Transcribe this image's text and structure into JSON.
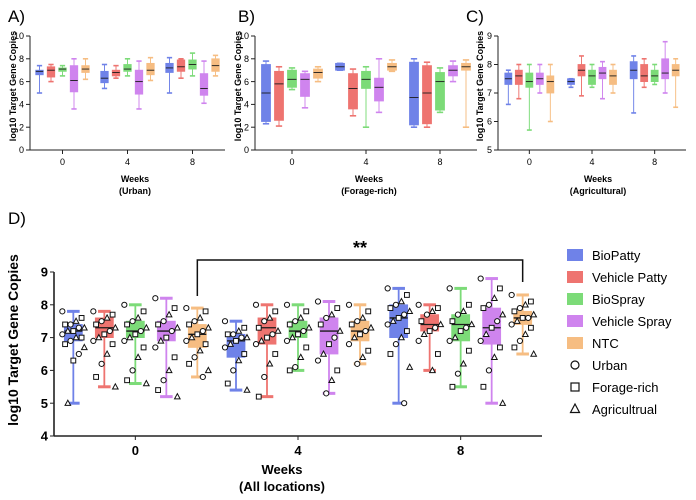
{
  "colors": {
    "BioPatty": "#6f82e8",
    "Vehicle Patty": "#ee7470",
    "BioSpray": "#7cdb78",
    "Vehicle Spray": "#cf84ee",
    "NTC": "#f6bd82"
  },
  "chart_data": [
    {
      "panel": "A)",
      "type": "box",
      "subtitle": "(Urban)",
      "xlabel": "Weeks",
      "ylabel": "log10 Target Gene Copies",
      "ylim": [
        0,
        10
      ],
      "yticks": [
        "0",
        "2",
        "4",
        "6",
        "8",
        "10"
      ],
      "categories": [
        "0",
        "4",
        "8"
      ],
      "series": [
        {
          "name": "BioPatty",
          "boxes": [
            [
              5.0,
              6.6,
              6.9,
              7.0,
              7.4
            ],
            [
              5.4,
              5.9,
              6.3,
              6.9,
              7.5
            ],
            [
              5.0,
              6.8,
              7.2,
              7.6,
              8.1
            ]
          ]
        },
        {
          "name": "Vehicle Patty",
          "boxes": [
            [
              6.0,
              6.4,
              7.0,
              7.3,
              7.5
            ],
            [
              6.3,
              6.5,
              6.8,
              7.0,
              7.4
            ],
            [
              6.3,
              6.9,
              7.3,
              7.9,
              8.0
            ]
          ]
        },
        {
          "name": "BioSpray",
          "boxes": [
            [
              6.5,
              6.9,
              7.1,
              7.2,
              7.4
            ],
            [
              6.5,
              6.9,
              7.1,
              7.5,
              8.0
            ],
            [
              6.5,
              7.1,
              7.5,
              7.9,
              8.5
            ]
          ]
        },
        {
          "name": "Vehicle Spray",
          "boxes": [
            [
              3.6,
              5.1,
              6.1,
              7.4,
              8.0
            ],
            [
              3.6,
              4.9,
              6.0,
              7.0,
              7.8
            ],
            [
              4.1,
              4.8,
              5.4,
              6.7,
              7.8
            ]
          ]
        },
        {
          "name": "NTC",
          "boxes": [
            [
              6.2,
              6.8,
              7.1,
              7.4,
              8.0
            ],
            [
              6.1,
              6.6,
              7.0,
              7.6,
              8.1
            ],
            [
              6.5,
              6.9,
              7.4,
              8.0,
              8.3
            ]
          ]
        }
      ]
    },
    {
      "panel": "B)",
      "type": "box",
      "subtitle": "(Forage-rich)",
      "xlabel": "Weeks",
      "ylabel": "log10 Target Gene Copies",
      "ylim": [
        0,
        10
      ],
      "yticks": [
        "0",
        "2",
        "4",
        "6",
        "8",
        "10"
      ],
      "categories": [
        "0",
        "4",
        "8"
      ],
      "series": [
        {
          "name": "BioPatty",
          "boxes": [
            [
              2.3,
              2.5,
              5.0,
              7.5,
              7.8
            ],
            [
              7.0,
              7.0,
              7.3,
              7.6,
              7.6
            ],
            [
              2.0,
              2.2,
              4.6,
              7.7,
              8.0
            ]
          ]
        },
        {
          "name": "Vehicle Patty",
          "boxes": [
            [
              2.1,
              2.6,
              5.8,
              6.9,
              7.3
            ],
            [
              3.0,
              3.6,
              5.4,
              6.7,
              7.1
            ],
            [
              2.0,
              2.3,
              5.0,
              7.4,
              7.7
            ]
          ]
        },
        {
          "name": "BioSpray",
          "boxes": [
            [
              5.3,
              5.5,
              6.2,
              7.0,
              7.2
            ],
            [
              2.0,
              5.4,
              6.2,
              6.9,
              7.3
            ],
            [
              3.3,
              3.5,
              6.0,
              6.8,
              7.2
            ]
          ]
        },
        {
          "name": "Vehicle Spray",
          "boxes": [
            [
              3.7,
              4.7,
              6.2,
              6.7,
              6.9
            ],
            [
              3.3,
              4.3,
              5.5,
              6.3,
              8.0
            ],
            [
              6.0,
              6.5,
              7.0,
              7.4,
              7.8
            ]
          ]
        },
        {
          "name": "NTC",
          "boxes": [
            [
              6.0,
              6.3,
              6.8,
              7.1,
              7.3
            ],
            [
              6.9,
              7.0,
              7.3,
              7.6,
              7.9
            ],
            [
              2.0,
              7.0,
              7.3,
              7.6,
              7.9
            ]
          ]
        }
      ]
    },
    {
      "panel": "C)",
      "type": "box",
      "subtitle": "(Agricultural)",
      "xlabel": "Weeks",
      "ylabel": "log10 Target Gene Copies",
      "ylim": [
        5,
        9
      ],
      "yticks": [
        "5",
        "6",
        "7",
        "8",
        "9"
      ],
      "categories": [
        "0",
        "4",
        "8"
      ],
      "series": [
        {
          "name": "BioPatty",
          "boxes": [
            [
              6.6,
              7.3,
              7.5,
              7.7,
              7.8
            ],
            [
              7.2,
              7.3,
              7.4,
              7.5,
              7.5
            ],
            [
              6.3,
              7.5,
              7.8,
              8.1,
              8.3
            ]
          ]
        },
        {
          "name": "Vehicle Patty",
          "boxes": [
            [
              6.8,
              7.3,
              7.6,
              7.8,
              8.0
            ],
            [
              6.9,
              7.6,
              7.8,
              8.0,
              8.3
            ],
            [
              7.2,
              7.4,
              7.6,
              8.0,
              8.2
            ]
          ]
        },
        {
          "name": "BioSpray",
          "boxes": [
            [
              5.7,
              7.2,
              7.4,
              7.7,
              8.0
            ],
            [
              7.2,
              7.3,
              7.6,
              7.8,
              8.0
            ],
            [
              7.3,
              7.4,
              7.6,
              7.8,
              8.0
            ]
          ]
        },
        {
          "name": "Vehicle Spray",
          "boxes": [
            [
              7.0,
              7.3,
              7.5,
              7.7,
              8.0
            ],
            [
              6.8,
              7.5,
              7.7,
              7.9,
              8.1
            ],
            [
              7.0,
              7.5,
              7.7,
              8.2,
              8.8
            ]
          ]
        },
        {
          "name": "NTC",
          "boxes": [
            [
              6.0,
              7.0,
              7.4,
              7.6,
              8.0
            ],
            [
              7.0,
              7.3,
              7.6,
              7.8,
              8.0
            ],
            [
              6.5,
              7.6,
              7.8,
              8.0,
              8.2
            ]
          ]
        }
      ]
    },
    {
      "panel": "D)",
      "type": "box",
      "subtitle": "(All locations)",
      "xlabel": "Weeks",
      "ylabel": "log10 Target Gene Copies",
      "ylim": [
        4,
        9
      ],
      "yticks": [
        "4",
        "5",
        "6",
        "7",
        "8",
        "9"
      ],
      "categories": [
        "0",
        "4",
        "8"
      ],
      "significance": {
        "label": "**",
        "from": "NTC week 0",
        "to": "NTC week 8"
      },
      "legend": {
        "placement": "right",
        "series": [
          "BioPatty",
          "Vehicle Patty",
          "BioSpray",
          "Vehicle Spray",
          "NTC"
        ],
        "markers": [
          {
            "label": "Urban",
            "shape": "circle"
          },
          {
            "label": "Forage-rich",
            "shape": "square"
          },
          {
            "label": "Agricultrual",
            "shape": "triangle"
          }
        ]
      },
      "series": [
        {
          "name": "BioPatty",
          "boxes": [
            [
              5.0,
              6.9,
              7.2,
              7.4,
              7.8
            ],
            [
              5.4,
              6.4,
              6.9,
              7.1,
              7.5
            ],
            [
              5.0,
              7.0,
              7.6,
              8.0,
              8.5
            ]
          ],
          "points": [
            [
              7.8,
              7.6,
              7.5,
              7.4,
              7.4,
              7.3,
              7.3,
              7.2,
              7.2,
              7.1,
              7.0,
              7.0,
              6.9,
              6.8,
              6.7,
              6.5,
              6.3,
              5.0
            ],
            [
              7.5,
              7.3,
              7.2,
              7.1,
              7.1,
              7.0,
              7.0,
              6.9,
              6.8,
              6.7,
              6.5,
              6.3,
              6.0,
              5.6,
              5.4
            ],
            [
              8.5,
              8.3,
              8.1,
              8.0,
              7.9,
              7.8,
              7.7,
              7.6,
              7.5,
              7.4,
              7.2,
              7.0,
              6.8,
              6.5,
              6.1,
              5.0
            ]
          ]
        },
        {
          "name": "Vehicle Patty",
          "boxes": [
            [
              5.5,
              7.0,
              7.3,
              7.6,
              7.8
            ],
            [
              5.2,
              6.8,
              7.3,
              7.6,
              8.0
            ],
            [
              6.0,
              7.2,
              7.4,
              7.7,
              8.0
            ]
          ],
          "points": [
            [
              7.8,
              7.7,
              7.6,
              7.5,
              7.4,
              7.3,
              7.2,
              7.1,
              7.0,
              6.9,
              6.8,
              6.5,
              6.2,
              5.8,
              5.5
            ],
            [
              8.0,
              7.8,
              7.6,
              7.5,
              7.3,
              7.2,
              7.1,
              7.0,
              6.9,
              6.8,
              6.5,
              6.2,
              5.8,
              5.2
            ],
            [
              8.0,
              7.9,
              7.8,
              7.7,
              7.5,
              7.4,
              7.3,
              7.2,
              7.1,
              6.9,
              6.5,
              6.0
            ]
          ]
        },
        {
          "name": "BioSpray",
          "boxes": [
            [
              5.6,
              7.0,
              7.2,
              7.5,
              8.0
            ],
            [
              6.0,
              7.0,
              7.2,
              7.5,
              8.0
            ],
            [
              5.5,
              6.9,
              7.4,
              7.7,
              8.5
            ]
          ],
          "points": [
            [
              8.0,
              7.8,
              7.6,
              7.5,
              7.4,
              7.3,
              7.2,
              7.1,
              7.0,
              6.9,
              6.7,
              6.4,
              6.0,
              5.7,
              5.6
            ],
            [
              8.0,
              7.8,
              7.6,
              7.5,
              7.4,
              7.3,
              7.2,
              7.1,
              7.0,
              6.9,
              6.7,
              6.4,
              6.1,
              6.0
            ],
            [
              8.5,
              8.0,
              7.8,
              7.7,
              7.5,
              7.4,
              7.3,
              7.2,
              7.0,
              6.9,
              6.6,
              6.2,
              5.9,
              5.5
            ]
          ]
        },
        {
          "name": "Vehicle Spray",
          "boxes": [
            [
              5.2,
              6.9,
              7.2,
              7.5,
              8.2
            ],
            [
              5.3,
              6.5,
              7.2,
              7.6,
              8.1
            ],
            [
              5.0,
              6.8,
              7.3,
              7.9,
              8.8
            ]
          ],
          "points": [
            [
              8.2,
              7.9,
              7.7,
              7.5,
              7.4,
              7.3,
              7.2,
              7.0,
              6.9,
              6.7,
              6.4,
              6.0,
              5.7,
              5.4,
              5.2
            ],
            [
              8.1,
              7.9,
              7.7,
              7.6,
              7.4,
              7.2,
              7.0,
              6.8,
              6.5,
              6.3,
              6.0,
              5.7,
              5.3
            ],
            [
              8.8,
              8.5,
              8.2,
              8.0,
              7.9,
              7.7,
              7.5,
              7.3,
              7.1,
              6.9,
              6.7,
              6.4,
              6.0,
              5.5,
              5.0
            ]
          ]
        },
        {
          "name": "NTC",
          "boxes": [
            [
              5.8,
              6.7,
              7.1,
              7.4,
              7.9
            ],
            [
              6.2,
              6.9,
              7.2,
              7.5,
              8.0
            ],
            [
              6.5,
              7.4,
              7.6,
              7.8,
              8.3
            ]
          ],
          "points": [
            [
              7.9,
              7.8,
              7.6,
              7.5,
              7.4,
              7.3,
              7.2,
              7.1,
              7.0,
              6.9,
              6.8,
              6.6,
              6.4,
              6.2,
              6.0,
              5.8
            ],
            [
              8.0,
              7.8,
              7.6,
              7.5,
              7.4,
              7.3,
              7.2,
              7.1,
              7.0,
              6.8,
              6.6,
              6.4,
              6.2
            ],
            [
              8.3,
              8.1,
              8.0,
              7.9,
              7.8,
              7.7,
              7.6,
              7.6,
              7.5,
              7.4,
              7.3,
              7.1,
              6.9,
              6.7,
              6.5
            ]
          ]
        }
      ]
    }
  ]
}
